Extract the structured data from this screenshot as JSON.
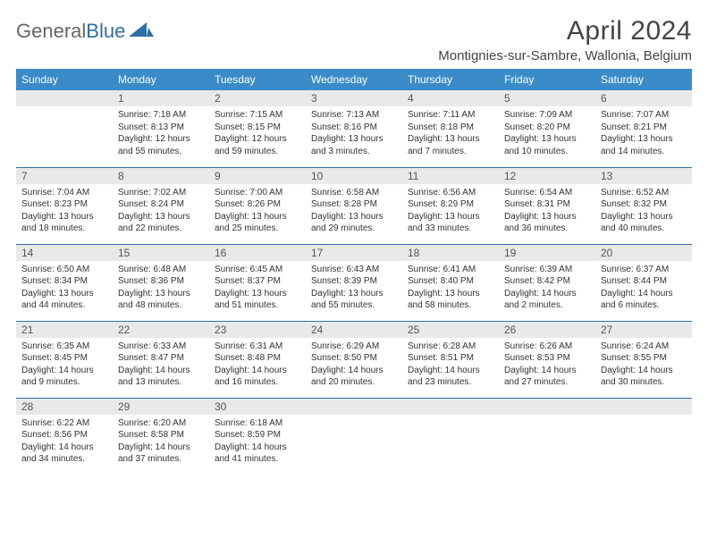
{
  "logo": {
    "general": "General",
    "blue": "Blue"
  },
  "title": "April 2024",
  "location": "Montignies-sur-Sambre, Wallonia, Belgium",
  "colors": {
    "header_bg": "#3b8bc9",
    "header_text": "#ffffff",
    "daynum_bg": "#e9e9e9",
    "daynum_text": "#555555",
    "body_text": "#333333",
    "row_border": "#2f6fa7",
    "title_text": "#444444",
    "logo_general": "#666666",
    "logo_blue": "#2f6fa7"
  },
  "fonts": {
    "title_size": 30,
    "location_size": 15,
    "dayheader_size": 12,
    "daynum_size": 12,
    "body_size": 10
  },
  "day_names": [
    "Sunday",
    "Monday",
    "Tuesday",
    "Wednesday",
    "Thursday",
    "Friday",
    "Saturday"
  ],
  "layout": {
    "columns": 7,
    "rows": 5,
    "first_day_offset": 1
  },
  "weeks": [
    [
      null,
      {
        "n": "1",
        "sr": "Sunrise: 7:18 AM",
        "ss": "Sunset: 8:13 PM",
        "d1": "Daylight: 12 hours",
        "d2": "and 55 minutes."
      },
      {
        "n": "2",
        "sr": "Sunrise: 7:15 AM",
        "ss": "Sunset: 8:15 PM",
        "d1": "Daylight: 12 hours",
        "d2": "and 59 minutes."
      },
      {
        "n": "3",
        "sr": "Sunrise: 7:13 AM",
        "ss": "Sunset: 8:16 PM",
        "d1": "Daylight: 13 hours",
        "d2": "and 3 minutes."
      },
      {
        "n": "4",
        "sr": "Sunrise: 7:11 AM",
        "ss": "Sunset: 8:18 PM",
        "d1": "Daylight: 13 hours",
        "d2": "and 7 minutes."
      },
      {
        "n": "5",
        "sr": "Sunrise: 7:09 AM",
        "ss": "Sunset: 8:20 PM",
        "d1": "Daylight: 13 hours",
        "d2": "and 10 minutes."
      },
      {
        "n": "6",
        "sr": "Sunrise: 7:07 AM",
        "ss": "Sunset: 8:21 PM",
        "d1": "Daylight: 13 hours",
        "d2": "and 14 minutes."
      }
    ],
    [
      {
        "n": "7",
        "sr": "Sunrise: 7:04 AM",
        "ss": "Sunset: 8:23 PM",
        "d1": "Daylight: 13 hours",
        "d2": "and 18 minutes."
      },
      {
        "n": "8",
        "sr": "Sunrise: 7:02 AM",
        "ss": "Sunset: 8:24 PM",
        "d1": "Daylight: 13 hours",
        "d2": "and 22 minutes."
      },
      {
        "n": "9",
        "sr": "Sunrise: 7:00 AM",
        "ss": "Sunset: 8:26 PM",
        "d1": "Daylight: 13 hours",
        "d2": "and 25 minutes."
      },
      {
        "n": "10",
        "sr": "Sunrise: 6:58 AM",
        "ss": "Sunset: 8:28 PM",
        "d1": "Daylight: 13 hours",
        "d2": "and 29 minutes."
      },
      {
        "n": "11",
        "sr": "Sunrise: 6:56 AM",
        "ss": "Sunset: 8:29 PM",
        "d1": "Daylight: 13 hours",
        "d2": "and 33 minutes."
      },
      {
        "n": "12",
        "sr": "Sunrise: 6:54 AM",
        "ss": "Sunset: 8:31 PM",
        "d1": "Daylight: 13 hours",
        "d2": "and 36 minutes."
      },
      {
        "n": "13",
        "sr": "Sunrise: 6:52 AM",
        "ss": "Sunset: 8:32 PM",
        "d1": "Daylight: 13 hours",
        "d2": "and 40 minutes."
      }
    ],
    [
      {
        "n": "14",
        "sr": "Sunrise: 6:50 AM",
        "ss": "Sunset: 8:34 PM",
        "d1": "Daylight: 13 hours",
        "d2": "and 44 minutes."
      },
      {
        "n": "15",
        "sr": "Sunrise: 6:48 AM",
        "ss": "Sunset: 8:36 PM",
        "d1": "Daylight: 13 hours",
        "d2": "and 48 minutes."
      },
      {
        "n": "16",
        "sr": "Sunrise: 6:45 AM",
        "ss": "Sunset: 8:37 PM",
        "d1": "Daylight: 13 hours",
        "d2": "and 51 minutes."
      },
      {
        "n": "17",
        "sr": "Sunrise: 6:43 AM",
        "ss": "Sunset: 8:39 PM",
        "d1": "Daylight: 13 hours",
        "d2": "and 55 minutes."
      },
      {
        "n": "18",
        "sr": "Sunrise: 6:41 AM",
        "ss": "Sunset: 8:40 PM",
        "d1": "Daylight: 13 hours",
        "d2": "and 58 minutes."
      },
      {
        "n": "19",
        "sr": "Sunrise: 6:39 AM",
        "ss": "Sunset: 8:42 PM",
        "d1": "Daylight: 14 hours",
        "d2": "and 2 minutes."
      },
      {
        "n": "20",
        "sr": "Sunrise: 6:37 AM",
        "ss": "Sunset: 8:44 PM",
        "d1": "Daylight: 14 hours",
        "d2": "and 6 minutes."
      }
    ],
    [
      {
        "n": "21",
        "sr": "Sunrise: 6:35 AM",
        "ss": "Sunset: 8:45 PM",
        "d1": "Daylight: 14 hours",
        "d2": "and 9 minutes."
      },
      {
        "n": "22",
        "sr": "Sunrise: 6:33 AM",
        "ss": "Sunset: 8:47 PM",
        "d1": "Daylight: 14 hours",
        "d2": "and 13 minutes."
      },
      {
        "n": "23",
        "sr": "Sunrise: 6:31 AM",
        "ss": "Sunset: 8:48 PM",
        "d1": "Daylight: 14 hours",
        "d2": "and 16 minutes."
      },
      {
        "n": "24",
        "sr": "Sunrise: 6:29 AM",
        "ss": "Sunset: 8:50 PM",
        "d1": "Daylight: 14 hours",
        "d2": "and 20 minutes."
      },
      {
        "n": "25",
        "sr": "Sunrise: 6:28 AM",
        "ss": "Sunset: 8:51 PM",
        "d1": "Daylight: 14 hours",
        "d2": "and 23 minutes."
      },
      {
        "n": "26",
        "sr": "Sunrise: 6:26 AM",
        "ss": "Sunset: 8:53 PM",
        "d1": "Daylight: 14 hours",
        "d2": "and 27 minutes."
      },
      {
        "n": "27",
        "sr": "Sunrise: 6:24 AM",
        "ss": "Sunset: 8:55 PM",
        "d1": "Daylight: 14 hours",
        "d2": "and 30 minutes."
      }
    ],
    [
      {
        "n": "28",
        "sr": "Sunrise: 6:22 AM",
        "ss": "Sunset: 8:56 PM",
        "d1": "Daylight: 14 hours",
        "d2": "and 34 minutes."
      },
      {
        "n": "29",
        "sr": "Sunrise: 6:20 AM",
        "ss": "Sunset: 8:58 PM",
        "d1": "Daylight: 14 hours",
        "d2": "and 37 minutes."
      },
      {
        "n": "30",
        "sr": "Sunrise: 6:18 AM",
        "ss": "Sunset: 8:59 PM",
        "d1": "Daylight: 14 hours",
        "d2": "and 41 minutes."
      },
      null,
      null,
      null,
      null
    ]
  ]
}
